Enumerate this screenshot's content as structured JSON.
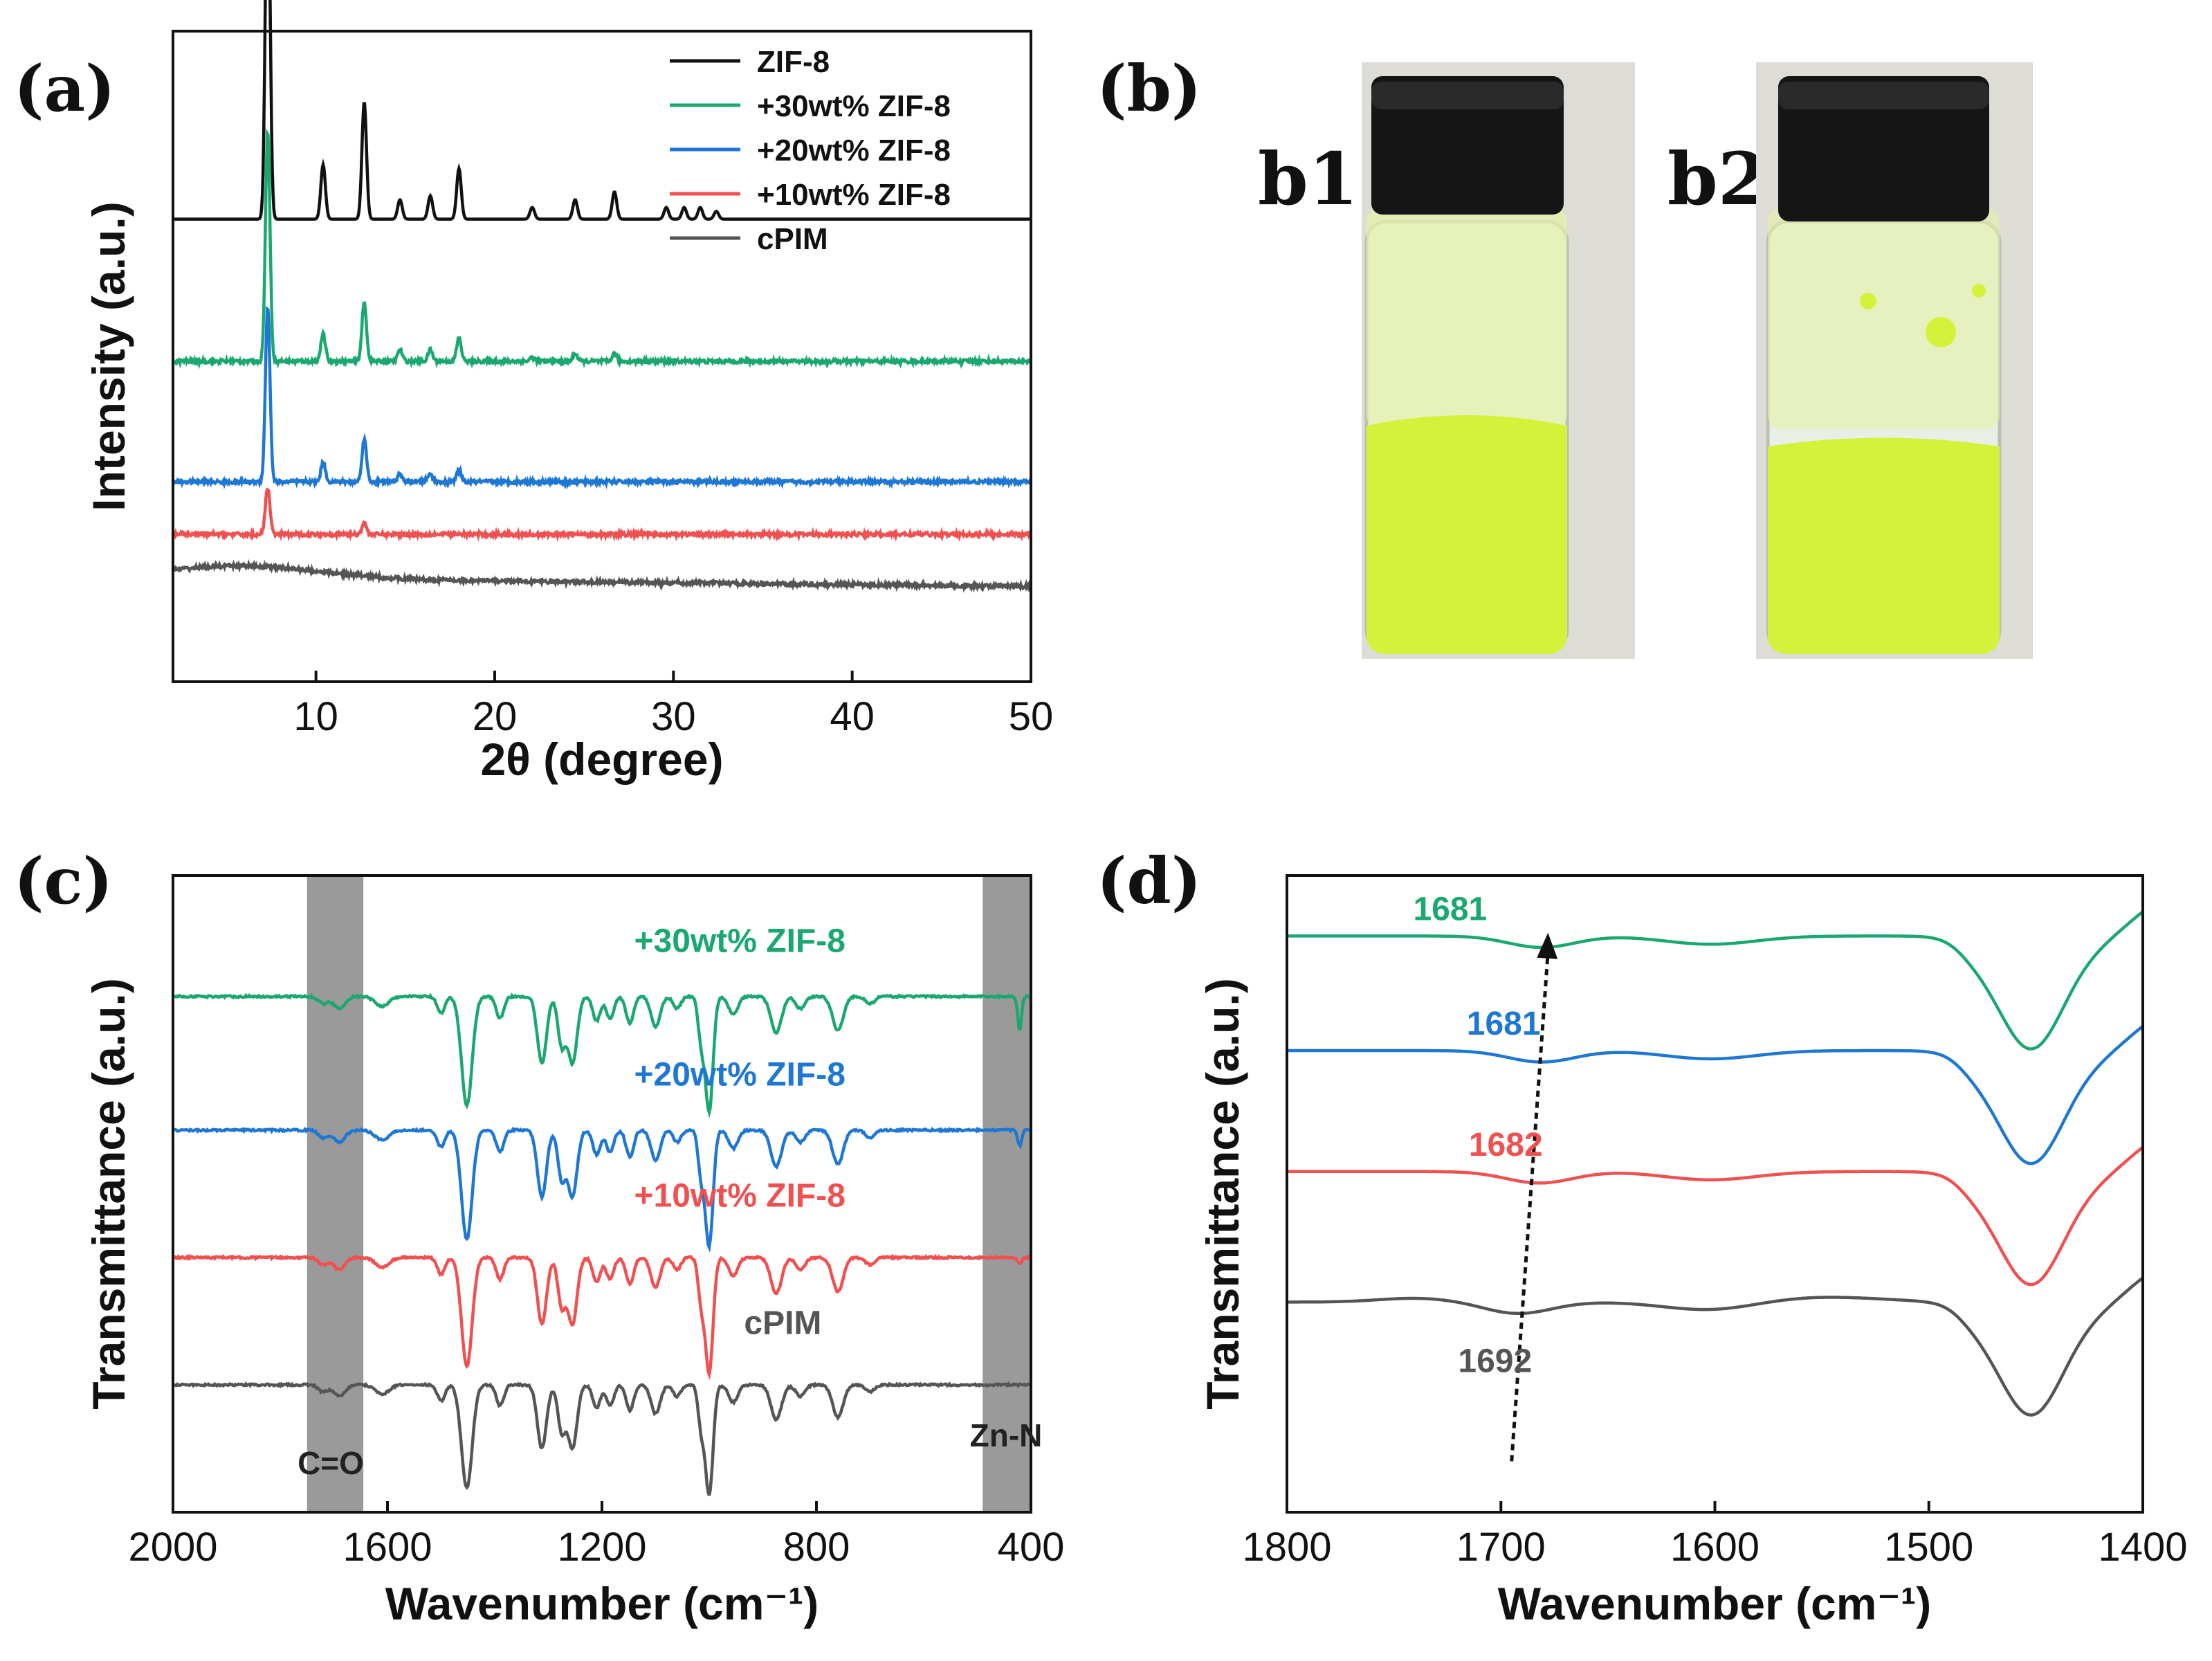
{
  "panels": {
    "a": "(a)",
    "b": "(b)",
    "c": "(c)",
    "d": "(d)"
  },
  "photos": {
    "b1": "b1",
    "b2": "b2",
    "liquid_color": "#d4f23a",
    "cap_color": "#151515"
  },
  "colors": {
    "ZIF-8": "#111111",
    "30wt": "#1aa870",
    "20wt": "#1f77d4",
    "10wt": "#f05050",
    "cPIM": "#555555",
    "shade": "#9a9a9a"
  },
  "chart_data": [
    {
      "id": "a",
      "type": "line",
      "title": "",
      "xlabel": "2θ (degree)",
      "ylabel": "Intensity (a.u.)",
      "xlim": [
        2,
        50
      ],
      "x_ticks": [
        10,
        20,
        30,
        40,
        50
      ],
      "y_ticks": [],
      "legend_position": "top-right",
      "legend": [
        "ZIF-8",
        "+30wt% ZIF-8",
        "+20wt% ZIF-8",
        "+10wt% ZIF-8",
        "cPIM"
      ],
      "peak_positions_2theta": [
        7.3,
        10.4,
        12.7,
        14.7,
        16.4,
        18.0,
        22.1,
        24.5,
        26.7,
        29.6,
        30.6,
        31.5,
        32.4
      ],
      "series": [
        {
          "name": "ZIF-8",
          "color_key": "ZIF-8",
          "baseline": 0.735,
          "peak_heights": [
            1.0,
            0.14,
            0.3,
            0.05,
            0.06,
            0.13,
            0.03,
            0.05,
            0.07,
            0.03,
            0.03,
            0.03,
            0.02
          ]
        },
        {
          "name": "+30wt% ZIF-8",
          "color_key": "30wt",
          "baseline": 0.505,
          "peak_heights": [
            0.59,
            0.07,
            0.15,
            0.03,
            0.03,
            0.06,
            0.01,
            0.02,
            0.02,
            0.0,
            0.0,
            0.0,
            0.0
          ]
        },
        {
          "name": "+20wt% ZIF-8",
          "color_key": "20wt",
          "baseline": 0.31,
          "peak_heights": [
            0.45,
            0.05,
            0.11,
            0.02,
            0.02,
            0.03,
            0.0,
            0.0,
            0.0,
            0.0,
            0.0,
            0.0,
            0.0
          ]
        },
        {
          "name": "+10wt% ZIF-8",
          "color_key": "10wt",
          "baseline": 0.225,
          "peak_heights": [
            0.12,
            0.0,
            0.03,
            0.0,
            0.0,
            0.0,
            0.0,
            0.0,
            0.0,
            0.0,
            0.0,
            0.0,
            0.0
          ]
        },
        {
          "name": "cPIM",
          "color_key": "cPIM",
          "baseline": 0.155,
          "peak_heights": [
            0,
            0,
            0,
            0,
            0,
            0,
            0,
            0,
            0,
            0,
            0,
            0,
            0
          ]
        }
      ]
    },
    {
      "id": "c",
      "type": "line",
      "title": "",
      "xlabel": "Wavenumber (cm⁻¹)",
      "ylabel": "Transmittance (a.u.)",
      "xlim": [
        2000,
        400
      ],
      "x_ticks": [
        2000,
        1600,
        1200,
        800,
        400
      ],
      "y_ticks": [],
      "shaded_bands": [
        {
          "from": 1750,
          "to": 1645,
          "label": "C=O"
        },
        {
          "from": 490,
          "to": 400,
          "label": "Zn-N"
        }
      ],
      "bands": [
        {
          "center": 1720,
          "width": 12,
          "depth": 0.06
        },
        {
          "center": 1690,
          "width": 15,
          "depth": 0.1
        },
        {
          "center": 1610,
          "width": 18,
          "depth": 0.08
        },
        {
          "center": 1500,
          "width": 10,
          "depth": 0.14
        },
        {
          "center": 1452,
          "width": 14,
          "depth": 0.9
        },
        {
          "center": 1390,
          "width": 10,
          "depth": 0.18
        },
        {
          "center": 1312,
          "width": 12,
          "depth": 0.55
        },
        {
          "center": 1275,
          "width": 10,
          "depth": 0.4
        },
        {
          "center": 1255,
          "width": 12,
          "depth": 0.55
        },
        {
          "center": 1210,
          "width": 10,
          "depth": 0.2
        },
        {
          "center": 1185,
          "width": 10,
          "depth": 0.18
        },
        {
          "center": 1148,
          "width": 10,
          "depth": 0.22
        },
        {
          "center": 1100,
          "width": 12,
          "depth": 0.25
        },
        {
          "center": 1060,
          "width": 10,
          "depth": 0.1
        },
        {
          "center": 1015,
          "width": 8,
          "depth": 0.35
        },
        {
          "center": 1000,
          "width": 10,
          "depth": 0.95
        },
        {
          "center": 955,
          "width": 12,
          "depth": 0.15
        },
        {
          "center": 875,
          "width": 14,
          "depth": 0.3
        },
        {
          "center": 830,
          "width": 12,
          "depth": 0.1
        },
        {
          "center": 760,
          "width": 14,
          "depth": 0.28
        },
        {
          "center": 700,
          "width": 12,
          "depth": 0.06
        }
      ],
      "series": [
        {
          "name": "+30wt% ZIF-8",
          "label": "+30wt% ZIF-8",
          "color_key": "30wt",
          "baseline": 0.81,
          "scale": 1.0,
          "zn_n": 0.75,
          "label_x": 1140,
          "label_y": 0.88
        },
        {
          "name": "+20wt% ZIF-8",
          "label": "+20wt% ZIF-8",
          "color_key": "20wt",
          "baseline": 0.6,
          "scale": 1.0,
          "zn_n": 0.35,
          "label_x": 1140,
          "label_y": 0.67
        },
        {
          "name": "+10wt% ZIF-8",
          "label": "+10wt% ZIF-8",
          "color_key": "10wt",
          "baseline": 0.4,
          "scale": 1.0,
          "zn_n": 0.15,
          "label_x": 1140,
          "label_y": 0.48
        },
        {
          "name": "cPIM",
          "label": "cPIM",
          "color_key": "cPIM",
          "baseline": 0.2,
          "scale": 0.95,
          "zn_n": 0.0,
          "label_x": 935,
          "label_y": 0.28
        }
      ]
    },
    {
      "id": "d",
      "type": "line",
      "title": "",
      "xlabel": "Wavenumber (cm⁻¹)",
      "ylabel": "Transmittance (a.u.)",
      "xlim": [
        1800,
        1400
      ],
      "x_ticks": [
        1800,
        1700,
        1600,
        1500,
        1400
      ],
      "y_ticks": [],
      "arrow": {
        "from": [
          1695,
          0.08
        ],
        "to": [
          1678,
          0.91
        ]
      },
      "series": [
        {
          "name": "+30wt% ZIF-8",
          "color_key": "30wt",
          "baseline": 0.905,
          "peak_label": "1681",
          "peak_position": 1681,
          "label_x": 1741,
          "label_y": 0.93
        },
        {
          "name": "+20wt% ZIF-8",
          "color_key": "20wt",
          "baseline": 0.725,
          "peak_label": "1681",
          "peak_position": 1681,
          "label_x": 1716,
          "label_y": 0.75
        },
        {
          "name": "+10wt% ZIF-8",
          "color_key": "10wt",
          "baseline": 0.535,
          "peak_label": "1682",
          "peak_position": 1682,
          "label_x": 1715,
          "label_y": 0.56
        },
        {
          "name": "cPIM",
          "color_key": "cPIM",
          "baseline": 0.33,
          "peak_label": "1692",
          "peak_position": 1692,
          "label_x": 1720,
          "label_y": 0.22
        }
      ]
    }
  ]
}
